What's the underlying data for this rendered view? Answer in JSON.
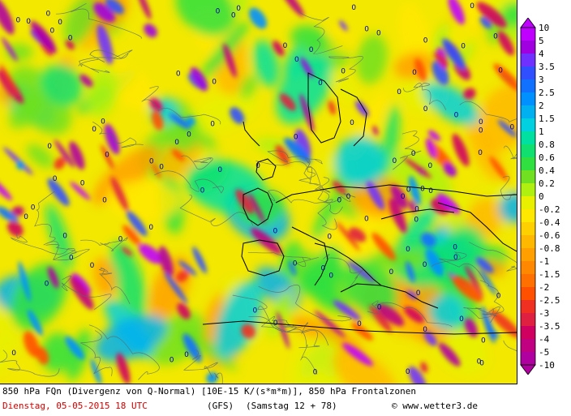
{
  "map": {
    "zero_label": "0"
  },
  "legend": {
    "levels": [
      "10",
      "5",
      "4",
      "3.5",
      "3",
      "2.5",
      "2",
      "1.5",
      "1",
      "0.8",
      "0.6",
      "0.4",
      "0.2",
      "0",
      "-0.2",
      "-0.4",
      "-0.6",
      "-0.8",
      "-1",
      "-1.5",
      "-2",
      "-2.5",
      "-3",
      "-3.5",
      "-4",
      "-5",
      "-10"
    ],
    "colors": [
      "#c000ff",
      "#a000e0",
      "#7030ff",
      "#3050ff",
      "#1070ff",
      "#0090ff",
      "#00b0f0",
      "#00d0e0",
      "#00e0a0",
      "#10e070",
      "#30e040",
      "#70e020",
      "#b0f010",
      "#e8f000",
      "#ffe800",
      "#ffd000",
      "#ffb800",
      "#ffa000",
      "#ff8800",
      "#ff7000",
      "#ff5000",
      "#f03020",
      "#e02040",
      "#d00060",
      "#c00080",
      "#b000a0"
    ]
  },
  "caption": {
    "line1": "850 hPa FQn (Divergenz von Q-Normal) [10E-15 K/(s*m*m)], 850 hPa Frontalzonen",
    "date": "Dienstag, 05-05-2015  18 UTC",
    "model": "(GFS)",
    "run": "(Samstag 12 + 78)",
    "copyright": "© www.wetter3.de"
  },
  "colors": {
    "date_text": "#d40000",
    "label_text": "#000000"
  }
}
